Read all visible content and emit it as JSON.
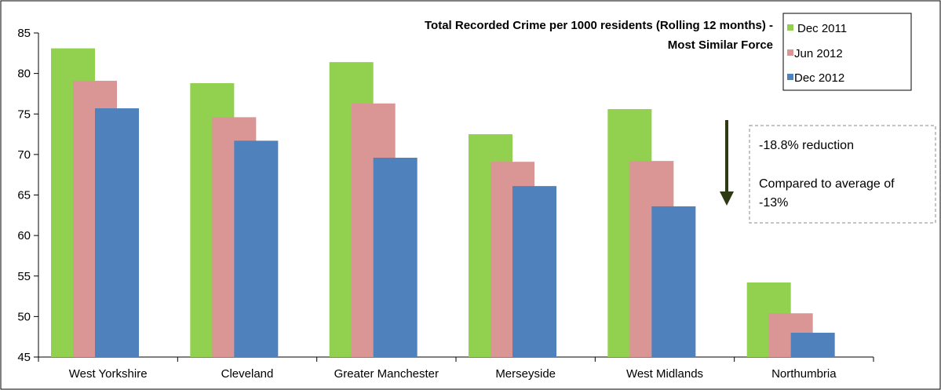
{
  "chart_data": {
    "type": "bar",
    "title_line1": "Total Recorded Crime per 1000 residents (Rolling 12 months) -",
    "title_line2": "Most Similar Force",
    "xlabel": "",
    "ylabel": "",
    "ylim": [
      45,
      85
    ],
    "yticks": [
      "45",
      "50",
      "55",
      "60",
      "65",
      "70",
      "75",
      "80",
      "85"
    ],
    "grid": false,
    "legend_position": "top-right",
    "categories": [
      "West Yorkshire",
      "Cleveland",
      "Greater Manchester",
      "Merseyside",
      "West Midlands",
      "Northumbria"
    ],
    "series": [
      {
        "name": "Dec 2011",
        "color": "#92D050",
        "values": [
          83.1,
          78.8,
          81.4,
          72.5,
          75.6,
          54.2
        ]
      },
      {
        "name": "Jun 2012",
        "color": "#D99694",
        "values": [
          79.1,
          74.6,
          76.3,
          69.1,
          69.2,
          50.4
        ]
      },
      {
        "name": "Dec 2012",
        "color": "#4F81BD",
        "values": [
          75.7,
          71.7,
          69.6,
          66.1,
          63.6,
          48.0
        ]
      }
    ],
    "annotation": {
      "line1": "-18.8% reduction",
      "line2": "Compared to average of",
      "line3": "-13%",
      "arrow_color": "#2E3A12",
      "target_category": "West Midlands"
    }
  }
}
